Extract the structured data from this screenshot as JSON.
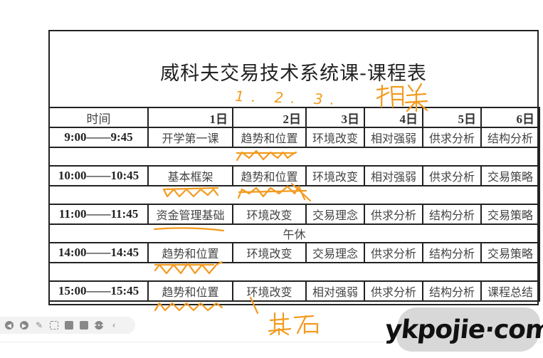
{
  "schedule": {
    "title": "威科夫交易技术系统课-课程表",
    "header": [
      "时间",
      "1日",
      "2日",
      "3日",
      "4日",
      "5日",
      "6日"
    ],
    "rows": [
      {
        "time": "9:00——9:45",
        "cells": [
          "开学第一课",
          "趋势和位置",
          "环境改变",
          "相对强弱",
          "供求分析",
          "结构分析"
        ]
      },
      {
        "time": "10:00——10:45",
        "cells": [
          "基本框架",
          "趋势和位置",
          "环境改变",
          "相对强弱",
          "供求分析",
          "交易策略"
        ]
      },
      {
        "time": "11:00——11:45",
        "cells": [
          "资金管理基础",
          "环境改变",
          "交易理念",
          "供求分析",
          "结构分析",
          "交易策略"
        ]
      },
      {
        "time": "14:00——14:45",
        "cells": [
          "趋势和位置",
          "环境改变",
          "交易理念",
          "供求分析",
          "结构分析",
          "交易策略"
        ]
      },
      {
        "time": "15:00——15:45",
        "cells": [
          "趋势和位置",
          "环境改变",
          "相对强弱",
          "供求分析",
          "结构分析",
          "课程总结"
        ]
      }
    ],
    "lunch_break": "午休"
  },
  "annotations": {
    "color": "#f39a1e",
    "numbers": "1. 2. 3.",
    "related": "相关",
    "foundation": "基石"
  },
  "toolbar": {
    "icons": [
      "prev-icon",
      "next-icon",
      "pen-icon",
      "screenshot-icon",
      "camera-icon",
      "comment-icon",
      "more-icon",
      "collapse-icon"
    ]
  },
  "watermark": "ykpojie·com"
}
